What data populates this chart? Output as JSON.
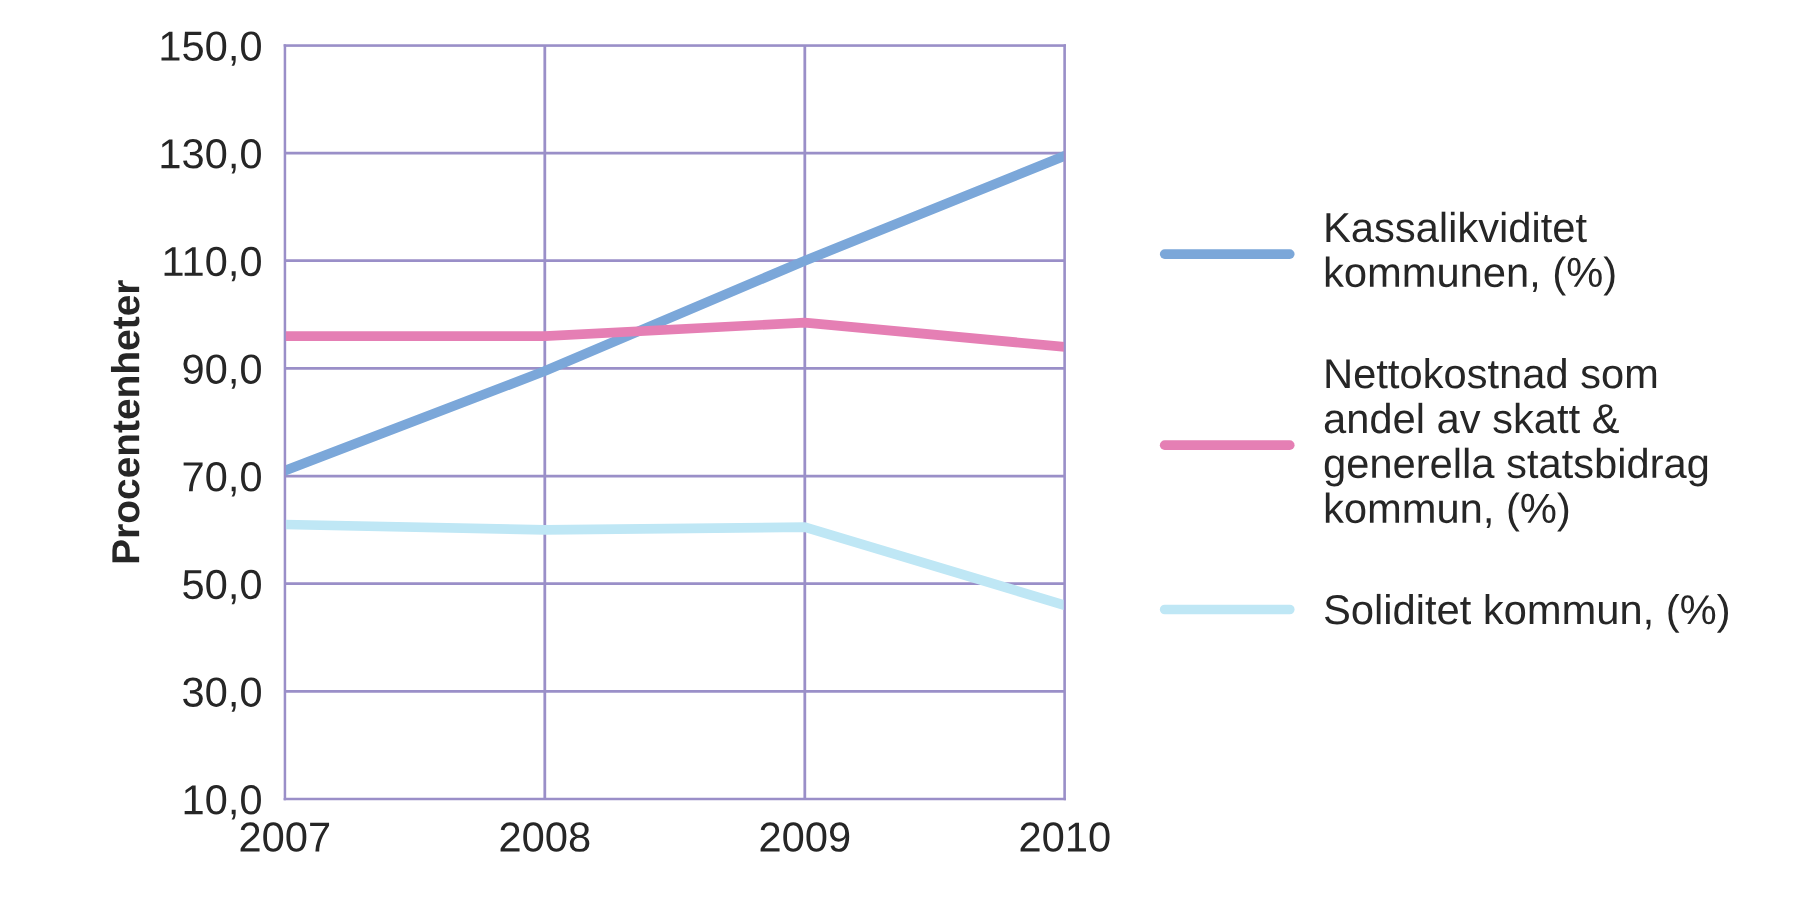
{
  "chart_data": {
    "type": "line",
    "ylabel": "Procentenheter",
    "x": [
      2007,
      2008,
      2009,
      2010
    ],
    "series": [
      {
        "name": "Kassalikviditet\nkommunen, (%)",
        "color": "#7ba7d9",
        "values": [
          71.0,
          89.5,
          110.0,
          129.5
        ]
      },
      {
        "name": "Nettokostnad som\nandel av skatt &\ngenerella statsbidrag\nkommun, (%)",
        "color": "#e57fb4",
        "values": [
          96.0,
          96.0,
          98.5,
          94.0
        ]
      },
      {
        "name": "Soliditet kommun, (%)",
        "color": "#bfe7f5",
        "values": [
          61.0,
          60.0,
          60.5,
          46.0
        ]
      }
    ],
    "xlim": [
      2007,
      2010
    ],
    "xticks": [
      2007,
      2008,
      2009,
      2010
    ],
    "ylim": [
      10,
      150
    ],
    "yticks": [
      {
        "value": 10,
        "label": "10,0"
      },
      {
        "value": 30,
        "label": "30,0"
      },
      {
        "value": 50,
        "label": "50,0"
      },
      {
        "value": 70,
        "label": "70,0"
      },
      {
        "value": 90,
        "label": "90,0"
      },
      {
        "value": 110,
        "label": "110,0"
      },
      {
        "value": 130,
        "label": "130,0"
      },
      {
        "value": 150,
        "label": "150,0"
      }
    ],
    "grid": true,
    "legend": "right",
    "marker": "none",
    "line_style": "solid"
  }
}
